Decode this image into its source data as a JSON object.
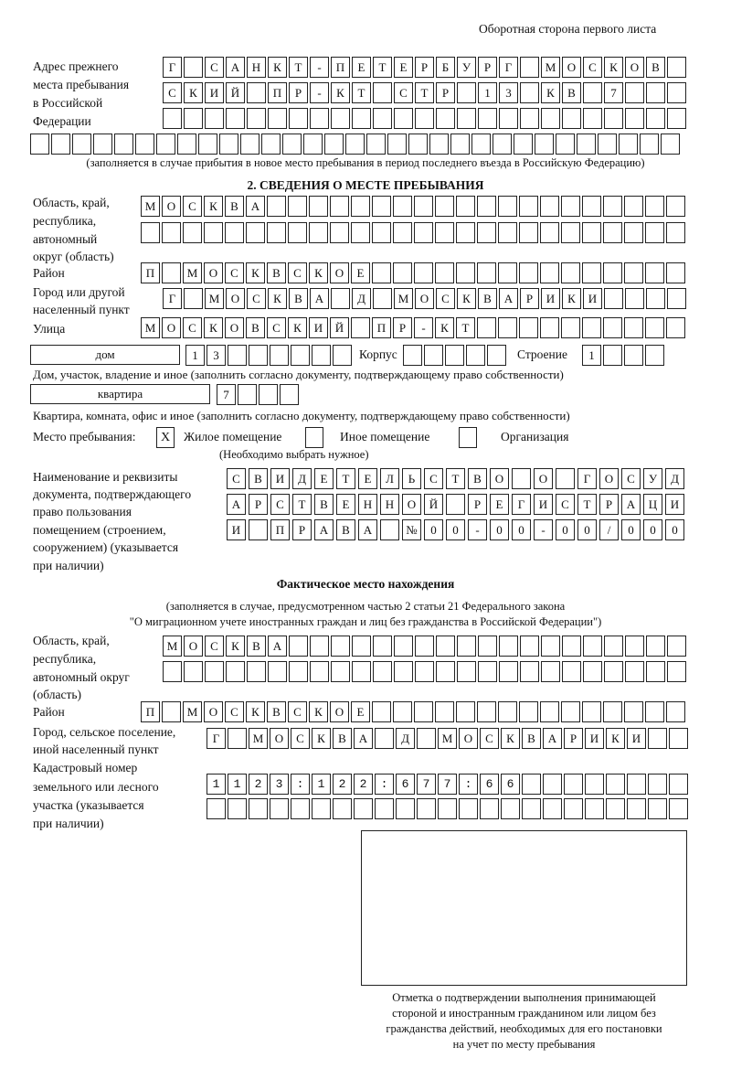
{
  "header": "Оборотная сторона первого листа",
  "prev_address": {
    "label": [
      "Адрес прежнего",
      "места пребывания",
      "в Российской",
      "Федерации"
    ],
    "rows": [
      "Г САНКТ-ПЕТЕРБУРГ МОСКОВ",
      "СКИЙ ПР-КТ СТР 13 КВ 7",
      "",
      ""
    ],
    "note": "(заполняется в случае прибытия в новое место пребывания в период последнего въезда в Российскую Федерацию)"
  },
  "section2": {
    "title": "2. СВЕДЕНИЯ О МЕСТЕ ПРЕБЫВАНИЯ",
    "region_label": [
      "Область, край,",
      "республика,",
      "автономный",
      "округ (область)"
    ],
    "region_rows": [
      "МОСКВА",
      ""
    ],
    "district_label": "Район",
    "district": "П МОСКВСКОЕ",
    "city_label": [
      "Город или другой",
      "населенный пункт"
    ],
    "city": "Г МОСКВА Д МОСКВАРИКИ",
    "street_label": "Улица",
    "street": "МОСКОВСКИЙ ПР-КТ",
    "house_type": "дом",
    "house": "13",
    "korpus_label": "Корпус",
    "korpus": "",
    "building_label": "Строение",
    "building": "1",
    "house_note": "Дом, участок, владение и иное (заполнить согласно документу, подтверждающему право собственности)",
    "apt_type": "квартира",
    "apt": "7",
    "apt_note": "Квартира, комната, офис и иное (заполнить согласно документу, подтверждающему право собственности)",
    "stay_label": "Место пребывания:",
    "options": [
      {
        "label": "Жилое помещение",
        "mark": "X"
      },
      {
        "label": "Иное помещение",
        "mark": ""
      },
      {
        "label": "Организация",
        "mark": ""
      }
    ],
    "choose_note": "(Необходимо выбрать нужное)",
    "doc_label": [
      "Наименование и реквизиты",
      "документа, подтверждающего",
      "право пользования",
      "помещением (строением,",
      "сооружением) (указывается",
      "при наличии)"
    ],
    "doc_rows": [
      "СВИДЕТЕЛЬСТВО О ГОСУД",
      "АРСТВЕННОЙ РЕГИСТРАЦИ",
      "И ПРАВА №00-00-00/000"
    ]
  },
  "actual": {
    "title": "Фактическое место нахождения",
    "note": [
      "(заполняется в случае, предусмотренном частью 2 статьи 21 Федерального закона",
      "\"О миграционном учете иностранных граждан и лиц без гражданства в Российской Федерации\")"
    ],
    "region_label": [
      "Область, край,",
      "республика,",
      "автономный округ",
      "(область)"
    ],
    "region_rows": [
      "МОСКВА",
      ""
    ],
    "district_label": "Район",
    "district": "П МОСКВСКОЕ",
    "city_label": [
      "Город, сельское поселение,",
      "иной населенный пункт"
    ],
    "city": "Г МОСКВА Д МОСКВАРИКИ",
    "cadastre_label": [
      "Кадастровый номер",
      "земельного или лесного",
      "участка (указывается",
      "при наличии)"
    ],
    "cadastre_rows": [
      "1123:122:677:66",
      ""
    ]
  },
  "stamp_caption": [
    "Отметка о подтверждении выполнения принимающей",
    "стороной и иностранным гражданином или лицом без",
    "гражданства действий, необходимых для его постановки",
    "на учет по месту пребывания"
  ]
}
